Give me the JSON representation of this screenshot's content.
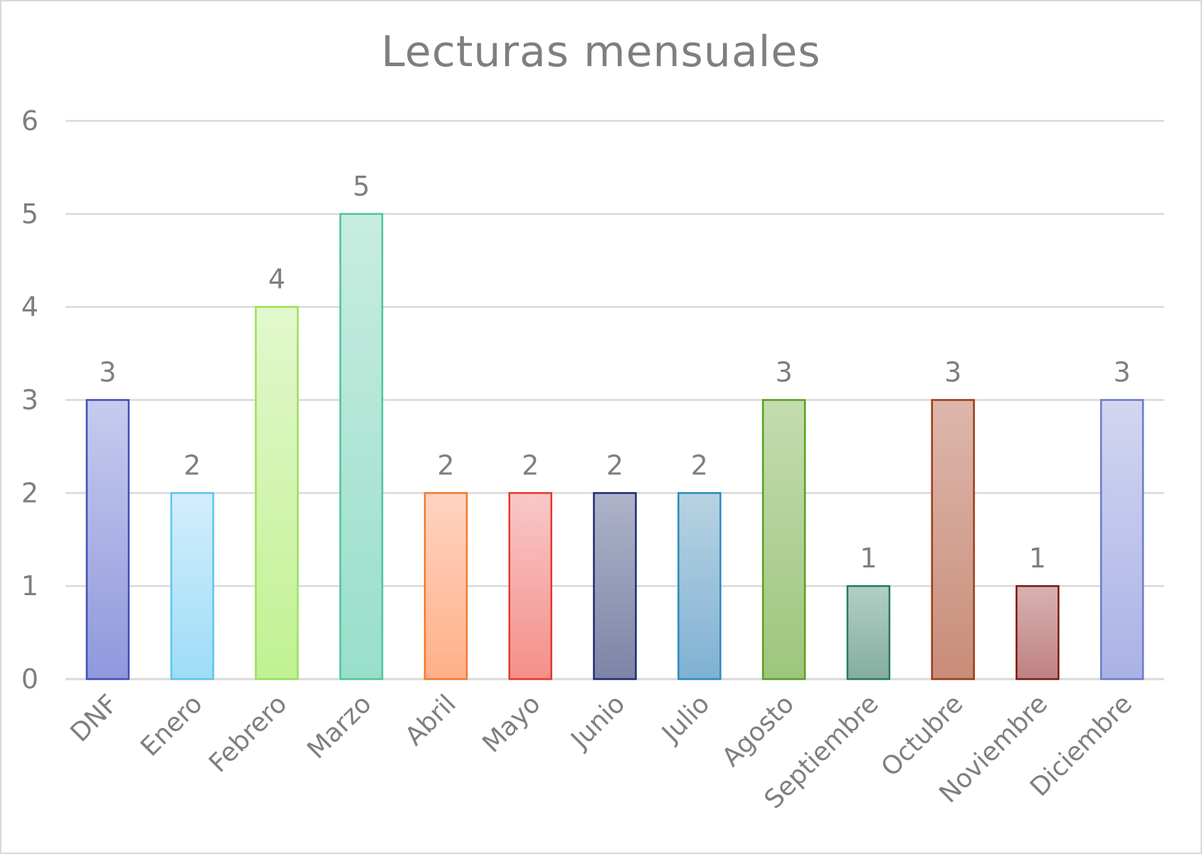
{
  "chart_data": {
    "type": "bar",
    "title": "Lecturas mensuales",
    "xlabel": "",
    "ylabel": "",
    "ylim": [
      0,
      6
    ],
    "yticks": [
      "0",
      "1",
      "2",
      "3",
      "4",
      "5",
      "6"
    ],
    "grid": true,
    "legend": "none",
    "categories": [
      "DNF",
      "Enero",
      "Febrero",
      "Marzo",
      "Abril",
      "Mayo",
      "Junio",
      "Julio",
      "Agosto",
      "Septiembre",
      "Octubre",
      "Noviembre",
      "Diciembre"
    ],
    "values": [
      3,
      2,
      4,
      5,
      2,
      2,
      2,
      2,
      3,
      1,
      3,
      1,
      3
    ],
    "colors": [
      {
        "top": "#c7cbee",
        "bottom": "#8f98dc",
        "stroke": "#3f4fb5"
      },
      {
        "top": "#d3eefc",
        "bottom": "#9ddcf6",
        "stroke": "#5cc4ee"
      },
      {
        "top": "#e2f8cd",
        "bottom": "#c1f192",
        "stroke": "#98e05a"
      },
      {
        "top": "#c8ece0",
        "bottom": "#98dfca",
        "stroke": "#4cc4a0"
      },
      {
        "top": "#ffd3c1",
        "bottom": "#ffb088",
        "stroke": "#f07a30"
      },
      {
        "top": "#f8c8c8",
        "bottom": "#f58f8a",
        "stroke": "#e03a2c"
      },
      {
        "top": "#aeb3c9",
        "bottom": "#7e84a7",
        "stroke": "#1e2c70"
      },
      {
        "top": "#b8d3e2",
        "bottom": "#7fb1d3",
        "stroke": "#2a8bbf"
      },
      {
        "top": "#c4dcb0",
        "bottom": "#9cc67c",
        "stroke": "#5a9e20"
      },
      {
        "top": "#b2cfc5",
        "bottom": "#85ad9e",
        "stroke": "#267a5e"
      },
      {
        "top": "#ddb7ac",
        "bottom": "#c98c79",
        "stroke": "#9c3a16"
      },
      {
        "top": "#d9b2b2",
        "bottom": "#bf8080",
        "stroke": "#7a1a12"
      },
      {
        "top": "#d2d6f0",
        "bottom": "#aab2e6",
        "stroke": "#6a7acc"
      }
    ],
    "grid_color": "#d9d9d9",
    "text_color": "#7f7f7f"
  }
}
